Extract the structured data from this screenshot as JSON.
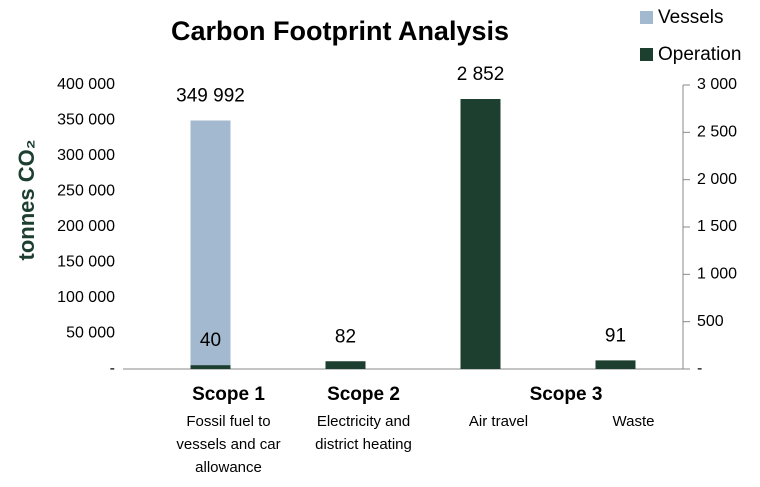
{
  "chart_data": {
    "type": "bar",
    "title": "Carbon Footprint Analysis",
    "y_label": "tonnes CO₂",
    "categories": [
      "Fossil fuel to vessels and car allowance",
      "Electricity and district heating",
      "Air travel",
      "Waste"
    ],
    "groups": [
      {
        "name": "Scope 1",
        "count": 1
      },
      {
        "name": "Scope 2",
        "count": 1
      },
      {
        "name": "Scope 3",
        "count": 2
      }
    ],
    "series": [
      {
        "name": "Vessels",
        "color": "#a3b9cf",
        "values": [
          349992,
          null,
          null,
          null
        ],
        "value_labels": [
          "349 992",
          null,
          null,
          null
        ]
      },
      {
        "name": "Operation",
        "color": "#1d3f2f",
        "axis": "y2",
        "values": [
          40,
          82,
          2852,
          91
        ],
        "value_labels": [
          "40",
          "82",
          "2 852",
          "91"
        ]
      }
    ],
    "ylim": [
      0,
      400000
    ],
    "yticks": [
      {
        "value": 0,
        "label": "-"
      },
      {
        "value": 50000,
        "label": "50 000"
      },
      {
        "value": 100000,
        "label": "100 000"
      },
      {
        "value": 150000,
        "label": "150 000"
      },
      {
        "value": 200000,
        "label": "200 000"
      },
      {
        "value": 250000,
        "label": "250 000"
      },
      {
        "value": 300000,
        "label": "300 000"
      },
      {
        "value": 350000,
        "label": "350 000"
      },
      {
        "value": 400000,
        "label": "400 000"
      }
    ],
    "y2lim": [
      0,
      3000
    ],
    "y2ticks": [
      {
        "value": 0,
        "label": "-"
      },
      500,
      {
        "value": 1000,
        "label": "1 000"
      },
      {
        "value": 1500,
        "label": "1 500"
      },
      {
        "value": 2000,
        "label": "2 000"
      },
      {
        "value": 2500,
        "label": "2 500"
      },
      {
        "value": 3000,
        "label": "3 000"
      }
    ],
    "grid": false,
    "legend": "top-right"
  }
}
